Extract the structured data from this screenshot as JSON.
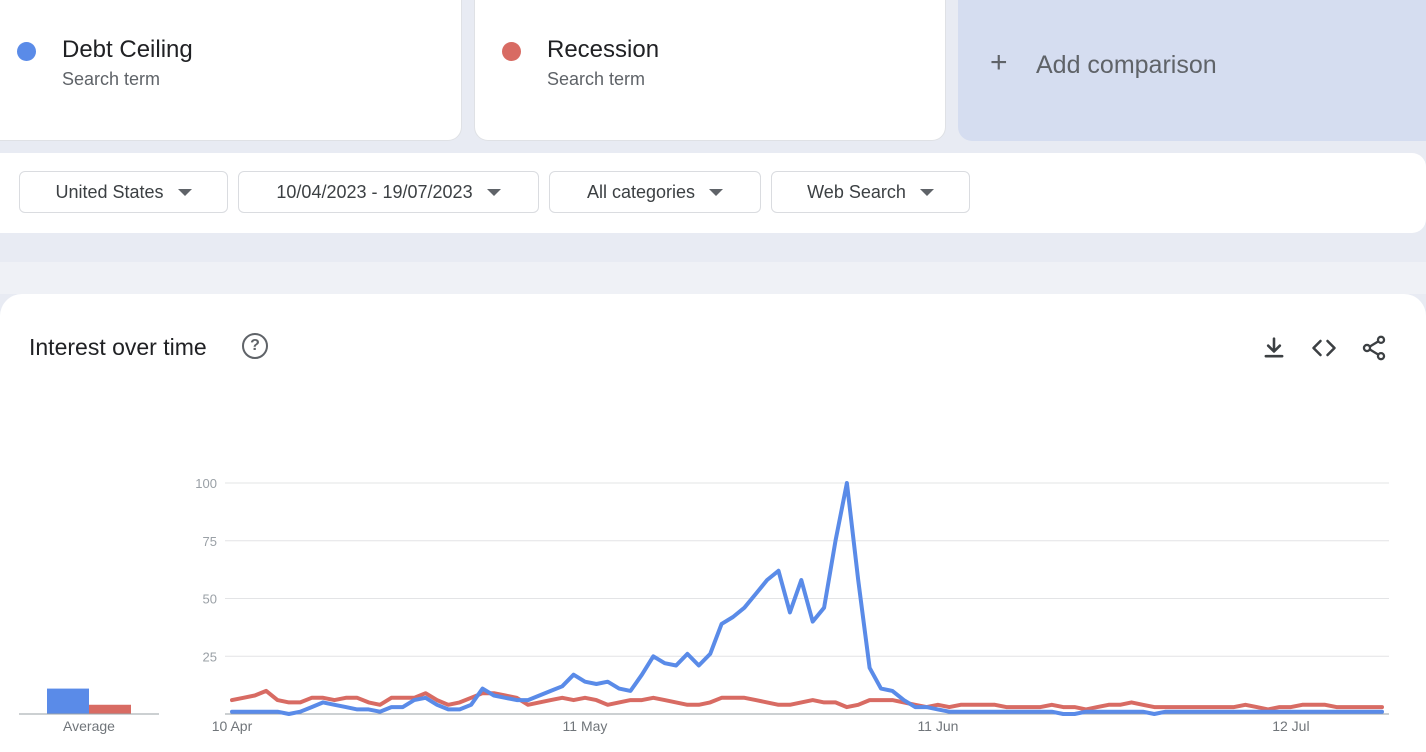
{
  "terms": [
    {
      "name": "Debt Ceiling",
      "subtitle": "Search term",
      "color": "#5a8be8"
    },
    {
      "name": "Recession",
      "subtitle": "Search term",
      "color": "#d86b63"
    }
  ],
  "add_comparison": {
    "label": "Add comparison",
    "icon": "plus-icon"
  },
  "filters": {
    "region": "United States",
    "date_range": "10/04/2023 - 19/07/2023",
    "category": "All categories",
    "search_type": "Web Search"
  },
  "chart_section": {
    "title": "Interest over time",
    "icons": [
      "help-icon",
      "download-icon",
      "embed-icon",
      "share-icon"
    ]
  },
  "chart_data": {
    "type": "line",
    "x_start": "10 Apr",
    "x_end": "19 Jul",
    "x_tick_labels": [
      "10 Apr",
      "11 May",
      "11 Jun",
      "12 Jul"
    ],
    "y_ticks": [
      25,
      50,
      75,
      100
    ],
    "ylim": [
      0,
      100
    ],
    "grid": true,
    "legend": "none",
    "series": [
      {
        "name": "Debt Ceiling",
        "color": "#5a8be8",
        "values": [
          1,
          1,
          1,
          1,
          1,
          0,
          1,
          3,
          5,
          4,
          3,
          2,
          2,
          1,
          3,
          3,
          6,
          7,
          4,
          2,
          2,
          4,
          11,
          8,
          7,
          6,
          6,
          8,
          10,
          12,
          17,
          14,
          13,
          14,
          11,
          10,
          17,
          25,
          22,
          21,
          26,
          21,
          26,
          39,
          42,
          46,
          52,
          58,
          62,
          44,
          58,
          40,
          46,
          75,
          100,
          58,
          20,
          11,
          10,
          6,
          3,
          3,
          2,
          1,
          1,
          1,
          1,
          1,
          1,
          1,
          1,
          1,
          1,
          0,
          0,
          1,
          1,
          1,
          1,
          1,
          1,
          0,
          1,
          1,
          1,
          1,
          1,
          1,
          1,
          1,
          1,
          1,
          1,
          1,
          1,
          1,
          1,
          1,
          1,
          1,
          1,
          1
        ]
      },
      {
        "name": "Recession",
        "color": "#d86b63",
        "values": [
          6,
          7,
          8,
          10,
          6,
          5,
          5,
          7,
          7,
          6,
          7,
          7,
          5,
          4,
          7,
          7,
          7,
          9,
          6,
          4,
          5,
          7,
          9,
          9,
          8,
          7,
          4,
          5,
          6,
          7,
          6,
          7,
          6,
          4,
          5,
          6,
          6,
          7,
          6,
          5,
          4,
          4,
          5,
          7,
          7,
          7,
          6,
          5,
          4,
          4,
          5,
          6,
          5,
          5,
          3,
          4,
          6,
          6,
          6,
          5,
          4,
          3,
          4,
          3,
          4,
          4,
          4,
          4,
          3,
          3,
          3,
          3,
          4,
          3,
          3,
          2,
          3,
          4,
          4,
          5,
          4,
          3,
          3,
          3,
          3,
          3,
          3,
          3,
          3,
          4,
          3,
          2,
          3,
          3,
          4,
          4,
          4,
          3,
          3,
          3,
          3,
          3
        ]
      }
    ],
    "average": {
      "label": "Average",
      "values": [
        11,
        4
      ]
    }
  }
}
